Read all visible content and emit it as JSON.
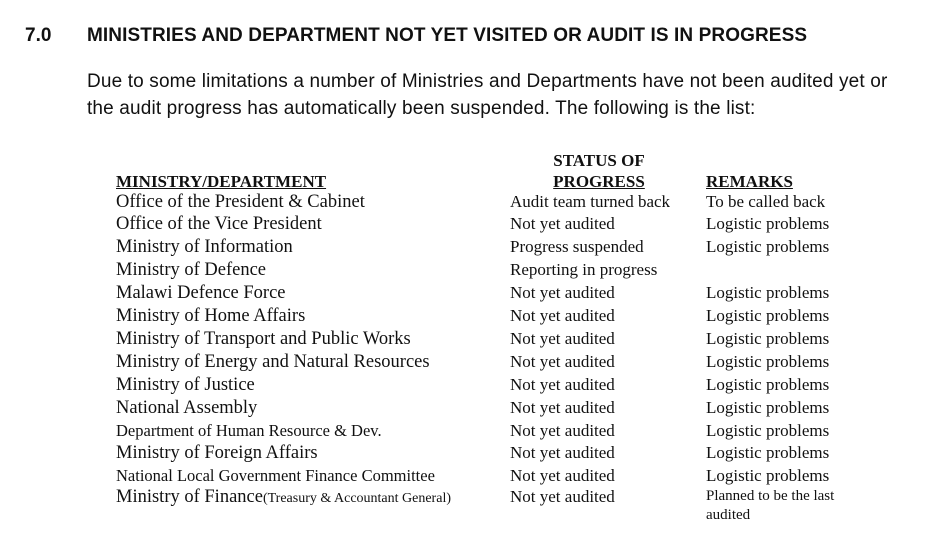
{
  "section": {
    "number": "7.0",
    "title": "MINISTRIES AND DEPARTMENT NOT YET VISITED OR AUDIT IS IN PROGRESS",
    "paragraph": "Due to some limitations a number of Ministries and Departments have not been audited yet or the audit progress has automatically been suspended. The following is the list:"
  },
  "table": {
    "headers": {
      "ministry": "MINISTRY/DEPARTMENT",
      "status_line1": "STATUS OF",
      "status_line2": "PROGRESS",
      "remarks": "REMARKS"
    },
    "rows": [
      {
        "ministry": "Office of the President & Cabinet",
        "status": "Audit team turned back",
        "remarks": "To be called back"
      },
      {
        "ministry": "Office of the Vice President",
        "status": "Not yet audited",
        "remarks": "Logistic problems"
      },
      {
        "ministry": "Ministry of Information",
        "status": "Progress suspended",
        "remarks": "Logistic problems"
      },
      {
        "ministry": "Ministry of Defence",
        "status": "Reporting in progress",
        "remarks": ""
      },
      {
        "ministry": "Malawi Defence Force",
        "status": "Not yet audited",
        "remarks": "Logistic problems"
      },
      {
        "ministry": "Ministry of Home Affairs",
        "status": "Not yet audited",
        "remarks": "Logistic problems"
      },
      {
        "ministry": "Ministry of Transport and Public Works",
        "status": "Not yet audited",
        "remarks": "Logistic problems"
      },
      {
        "ministry": "Ministry of Energy and Natural Resources",
        "status": "Not yet audited",
        "remarks": "Logistic problems"
      },
      {
        "ministry": "Ministry of Justice",
        "status": "Not yet audited",
        "remarks": "Logistic problems"
      },
      {
        "ministry": "National Assembly",
        "status": "Not yet audited",
        "remarks": "Logistic problems"
      },
      {
        "ministry": "Department of Human Resource & Dev.",
        "status": "Not yet audited",
        "remarks": "Logistic problems"
      },
      {
        "ministry": "Ministry of Foreign Affairs",
        "status": "Not yet audited",
        "remarks": "Logistic problems"
      },
      {
        "ministry": "National Local Government Finance Committee",
        "status": "Not yet audited",
        "remarks": "Logistic problems"
      },
      {
        "ministry": "Ministry of Finance",
        "ministry_note": "(Treasury & Accountant General)",
        "status": "Not yet audited",
        "remarks": "Planned to be the last audited"
      }
    ]
  }
}
